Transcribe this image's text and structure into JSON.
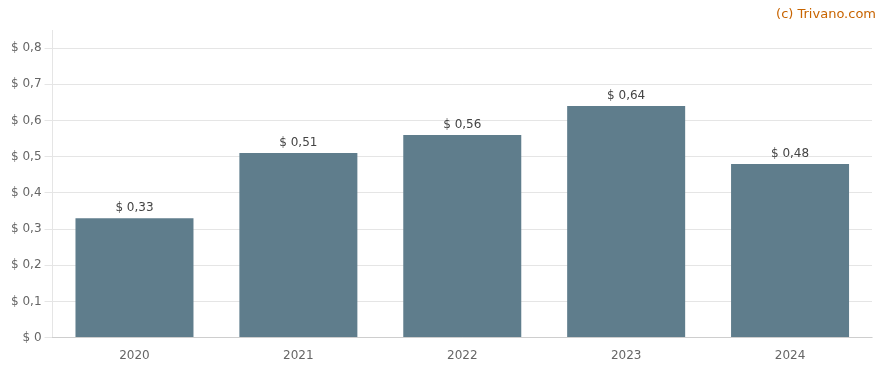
{
  "chart_data": {
    "type": "bar",
    "categories": [
      "2020",
      "2021",
      "2022",
      "2023",
      "2024"
    ],
    "values": [
      0.33,
      0.51,
      0.56,
      0.64,
      0.48
    ],
    "value_labels": [
      "$ 0,33",
      "$ 0,51",
      "$ 0,56",
      "$ 0,64",
      "$ 0,48"
    ],
    "data_labels": true,
    "color": "#5f7d8c",
    "ylim": [
      0,
      0.85
    ],
    "yticks": [
      {
        "value": 0.0,
        "label": "$ 0"
      },
      {
        "value": 0.1,
        "label": "$ 0,1"
      },
      {
        "value": 0.2,
        "label": "$ 0,2"
      },
      {
        "value": 0.3,
        "label": "$ 0,3"
      },
      {
        "value": 0.4,
        "label": "$ 0,4"
      },
      {
        "value": 0.5,
        "label": "$ 0,5"
      },
      {
        "value": 0.6,
        "label": "$ 0,6"
      },
      {
        "value": 0.7,
        "label": "$ 0,7"
      },
      {
        "value": 0.8,
        "label": "$ 0,8"
      }
    ],
    "grid": true,
    "annotations": [
      {
        "text": "(c) Trivano.com",
        "color": "#c86400"
      }
    ]
  }
}
